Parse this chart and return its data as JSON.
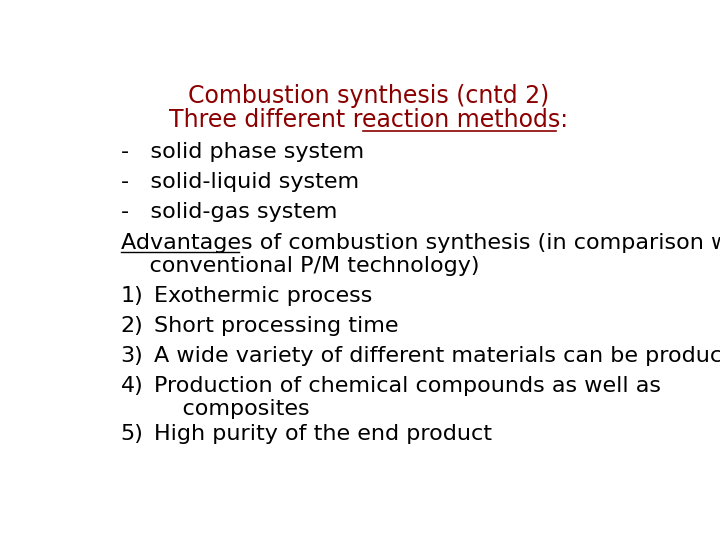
{
  "title_line1": "Combustion synthesis (cntd 2)",
  "title_line2": "Three different reaction methods:",
  "title_underline_start": "Three different ",
  "title_underline_word": "reaction methods",
  "title_color": "#8B0000",
  "body_color": "#000000",
  "bg_color": "#FFFFFF",
  "title_fontsize": 17,
  "body_fontsize": 16,
  "bullets": [
    "-   solid phase system",
    "-   solid-liquid system",
    "-   solid-gas system"
  ],
  "advantages_prefix": "Advantages",
  "advantages_line1": "Advantages of combustion synthesis (in comparison with",
  "advantages_line2": "    conventional P/M technology)",
  "numbered_labels": [
    "1)",
    "2)",
    "3)",
    "4)",
    "5)"
  ],
  "numbered_line1": [
    "Exothermic process",
    "Short processing time",
    "A wide variety of different materials can be produced",
    "Production of chemical compounds as well as",
    "High purity of the end product"
  ],
  "numbered_line2": [
    "",
    "",
    "",
    "    composites",
    ""
  ]
}
